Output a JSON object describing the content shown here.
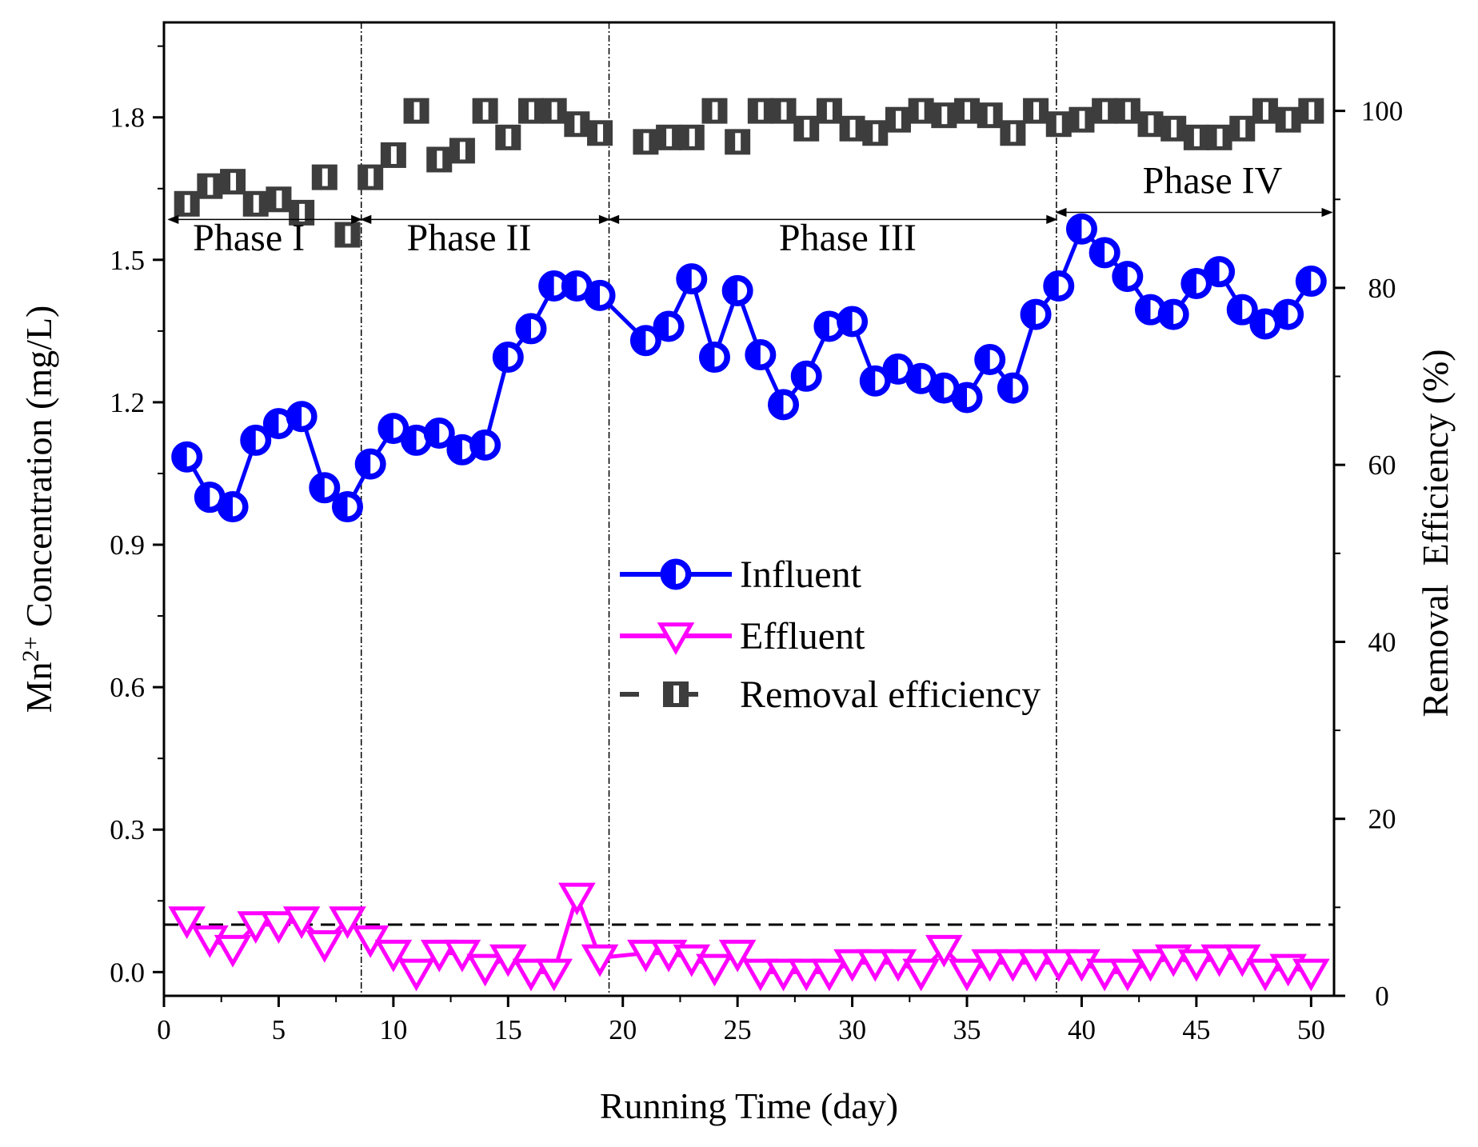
{
  "chart_data": {
    "type": "line",
    "xlabel": "Running Time (day)",
    "ylabel": "Mn2+ Concentration (mg/L)",
    "ylabel_parts": {
      "base": "Mn",
      "sup": "2+",
      "rest": " Concentration (mg/L)"
    },
    "y2label": "Removal  Efficiency (%)",
    "xlim": [
      0,
      51
    ],
    "ylim": [
      -0.05,
      2.0
    ],
    "y2lim": [
      0,
      110
    ],
    "x_ticks": [
      0,
      5,
      10,
      15,
      20,
      25,
      30,
      35,
      40,
      45,
      50
    ],
    "x_tick_labels": [
      "0",
      "5",
      "10",
      "15",
      "20",
      "25",
      "30",
      "35",
      "40",
      "45",
      "50"
    ],
    "y_ticks": [
      0.0,
      0.3,
      0.6,
      0.9,
      1.2,
      1.5,
      1.8
    ],
    "y_tick_labels": [
      "0.0",
      "0.3",
      "0.6",
      "0.9",
      "1.2",
      "1.5",
      "1.8"
    ],
    "y2_ticks": [
      0,
      20,
      40,
      60,
      80,
      100
    ],
    "y2_tick_labels": [
      "0",
      "20",
      "40",
      "60",
      "80",
      "100"
    ],
    "y2_minor_ticks": [
      10,
      30,
      50,
      70,
      90
    ],
    "reference_line": {
      "y": 0.1,
      "style": "dashed",
      "color": "#000000"
    },
    "phase_dividers": [
      8.6,
      19.4,
      38.9
    ],
    "phases": [
      {
        "label": "Phase I",
        "x_start": 0.2,
        "x_end": 8.6,
        "arrow_y": 1.585,
        "label_x": 3.7,
        "label_y": 1.52
      },
      {
        "label": "Phase II",
        "x_start": 8.6,
        "x_end": 19.4,
        "arrow_y": 1.585,
        "label_x": 13.3,
        "label_y": 1.52
      },
      {
        "label": "Phase III",
        "x_start": 19.4,
        "x_end": 38.9,
        "arrow_y": 1.585,
        "label_x": 29.8,
        "label_y": 1.52
      },
      {
        "label": "Phase IV",
        "x_start": 38.9,
        "x_end": 50.9,
        "arrow_y": 1.6,
        "label_x": 45.7,
        "label_y": 1.64
      }
    ],
    "series": [
      {
        "name": "Influent",
        "axis": "left",
        "color": "#0000ff",
        "marker": "half-circle",
        "x": [
          1,
          2,
          3,
          4,
          5,
          6,
          7,
          8,
          9,
          10,
          11,
          12,
          13,
          14,
          15,
          16,
          17,
          18,
          19,
          21,
          22,
          23,
          24,
          25,
          26,
          27,
          28,
          29,
          30,
          31,
          32,
          33,
          34,
          35,
          36,
          37,
          38,
          39,
          40,
          41,
          42,
          43,
          44,
          45,
          46,
          47,
          48,
          49,
          50
        ],
        "values": [
          1.085,
          1.0,
          0.98,
          1.12,
          1.155,
          1.17,
          1.02,
          0.98,
          1.07,
          1.145,
          1.12,
          1.135,
          1.1,
          1.11,
          1.295,
          1.355,
          1.445,
          1.445,
          1.425,
          1.33,
          1.36,
          1.46,
          1.295,
          1.435,
          1.3,
          1.195,
          1.255,
          1.36,
          1.37,
          1.245,
          1.27,
          1.25,
          1.23,
          1.21,
          1.29,
          1.23,
          1.385,
          1.445,
          1.565,
          1.515,
          1.465,
          1.395,
          1.385,
          1.45,
          1.475,
          1.395,
          1.365,
          1.385,
          1.455
        ]
      },
      {
        "name": "Effluent",
        "axis": "left",
        "color": "#ff00ff",
        "marker": "triangle-down",
        "x": [
          1,
          2,
          3,
          4,
          5,
          6,
          7,
          8,
          9,
          10,
          11,
          12,
          13,
          14,
          15,
          16,
          17,
          18,
          19,
          21,
          22,
          23,
          24,
          25,
          26,
          27,
          28,
          29,
          30,
          31,
          32,
          33,
          34,
          35,
          36,
          37,
          38,
          39,
          40,
          41,
          42,
          43,
          44,
          45,
          46,
          47,
          48,
          49,
          50
        ],
        "values": [
          0.11,
          0.07,
          0.05,
          0.1,
          0.1,
          0.11,
          0.06,
          0.11,
          0.07,
          0.04,
          0.0,
          0.04,
          0.04,
          0.01,
          0.03,
          0.0,
          0.0,
          0.16,
          0.03,
          0.04,
          0.04,
          0.03,
          0.01,
          0.04,
          0.0,
          0.0,
          0.0,
          0.0,
          0.02,
          0.02,
          0.02,
          0.0,
          0.05,
          0.0,
          0.02,
          0.02,
          0.02,
          0.02,
          0.02,
          0.0,
          0.0,
          0.02,
          0.03,
          0.02,
          0.03,
          0.03,
          0.0,
          0.01,
          0.0
        ]
      },
      {
        "name": "Removal efficiency",
        "axis": "right",
        "color": "#3d3d3d",
        "marker": "half-square",
        "x": [
          1,
          2,
          3,
          4,
          5,
          6,
          7,
          8,
          9,
          10,
          11,
          12,
          13,
          14,
          15,
          16,
          17,
          18,
          19,
          21,
          22,
          23,
          24,
          25,
          26,
          27,
          28,
          29,
          30,
          31,
          32,
          33,
          34,
          35,
          36,
          37,
          38,
          39,
          40,
          41,
          42,
          43,
          44,
          45,
          46,
          47,
          48,
          49,
          50
        ],
        "values": [
          89.5,
          91.5,
          92,
          89.5,
          90,
          88.5,
          92.5,
          86,
          92.5,
          95,
          100,
          94.5,
          95.5,
          100,
          97,
          100,
          100,
          98.5,
          97.5,
          96.5,
          97,
          97,
          100,
          96.5,
          100,
          100,
          98,
          100,
          98,
          97.5,
          99,
          100,
          99.5,
          100,
          99.5,
          97.5,
          100,
          98.5,
          99,
          100,
          100,
          98.5,
          98,
          97,
          97,
          98,
          100,
          99,
          100
        ]
      }
    ],
    "legend": [
      {
        "label": "Influent",
        "series": "Influent"
      },
      {
        "label": "Effluent",
        "series": "Effluent"
      },
      {
        "label": "Removal efficiency",
        "series": "Removal efficiency"
      }
    ]
  }
}
